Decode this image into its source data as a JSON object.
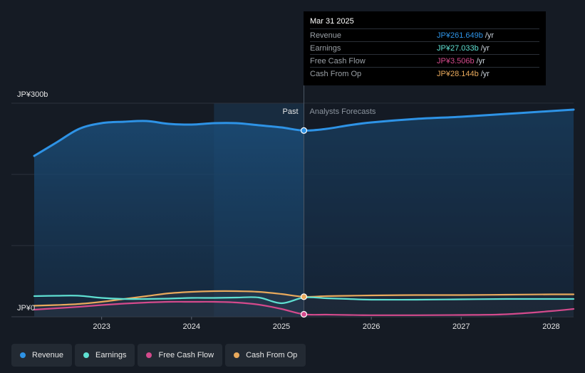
{
  "colors": {
    "background": "#151b24",
    "revenue": "#2e93e6",
    "earnings": "#5fe0d2",
    "free_cash_flow": "#d44a8c",
    "cash_from_op": "#e8a95c"
  },
  "tooltip": {
    "date": "Mar 31 2025",
    "rows": [
      {
        "label": "Revenue",
        "value": "JP¥261.649b",
        "unit": "/yr",
        "color": "#2e93e6"
      },
      {
        "label": "Earnings",
        "value": "JP¥27.033b",
        "unit": "/yr",
        "color": "#5fe0d2"
      },
      {
        "label": "Free Cash Flow",
        "value": "JP¥3.506b",
        "unit": "/yr",
        "color": "#d44a8c"
      },
      {
        "label": "Cash From Op",
        "value": "JP¥28.144b",
        "unit": "/yr",
        "color": "#e8a95c"
      }
    ]
  },
  "legend": [
    {
      "label": "Revenue",
      "color": "#2e93e6"
    },
    {
      "label": "Earnings",
      "color": "#5fe0d2"
    },
    {
      "label": "Free Cash Flow",
      "color": "#d44a8c"
    },
    {
      "label": "Cash From Op",
      "color": "#e8a95c"
    }
  ],
  "chart_data": {
    "type": "line",
    "y_top_label": "JP¥300b",
    "y_bottom_label": "JP¥0",
    "ylim": [
      0,
      300
    ],
    "xlim": [
      2022.25,
      2028.25
    ],
    "x_ticks": [
      "2023",
      "2024",
      "2025",
      "2026",
      "2027",
      "2028"
    ],
    "x_tick_values": [
      2023,
      2024,
      2025,
      2026,
      2027,
      2028
    ],
    "past_label": "Past",
    "forecast_label": "Analysts Forecasts",
    "divider_x": 2025.25,
    "highlight_start_x": 2024.25,
    "marker_x": 2025.25,
    "grid": true,
    "series": [
      {
        "name": "Revenue",
        "color": "#2e93e6",
        "points": [
          [
            2022.25,
            226
          ],
          [
            2022.5,
            245
          ],
          [
            2022.75,
            264
          ],
          [
            2023.0,
            272
          ],
          [
            2023.25,
            274
          ],
          [
            2023.5,
            275
          ],
          [
            2023.75,
            271
          ],
          [
            2024.0,
            270
          ],
          [
            2024.25,
            272
          ],
          [
            2024.5,
            272
          ],
          [
            2024.75,
            269
          ],
          [
            2025.0,
            266
          ],
          [
            2025.25,
            261.6
          ],
          [
            2025.5,
            264
          ],
          [
            2025.75,
            269
          ],
          [
            2026.0,
            273
          ],
          [
            2026.5,
            278
          ],
          [
            2027.0,
            281
          ],
          [
            2027.5,
            285
          ],
          [
            2028.0,
            289
          ],
          [
            2028.25,
            291
          ]
        ]
      },
      {
        "name": "Earnings",
        "color": "#5fe0d2",
        "points": [
          [
            2022.25,
            29
          ],
          [
            2022.5,
            29.5
          ],
          [
            2022.75,
            29.5
          ],
          [
            2023.0,
            26.5
          ],
          [
            2023.25,
            25
          ],
          [
            2023.5,
            25
          ],
          [
            2023.75,
            25.5
          ],
          [
            2024.0,
            26.5
          ],
          [
            2024.25,
            26.5
          ],
          [
            2024.5,
            27
          ],
          [
            2024.75,
            27
          ],
          [
            2025.0,
            19
          ],
          [
            2025.25,
            27
          ],
          [
            2025.5,
            26
          ],
          [
            2025.75,
            25
          ],
          [
            2026.0,
            24
          ],
          [
            2026.5,
            24
          ],
          [
            2027.0,
            24.5
          ],
          [
            2027.5,
            25
          ],
          [
            2028.0,
            25
          ],
          [
            2028.25,
            25
          ]
        ]
      },
      {
        "name": "Free Cash Flow",
        "color": "#d44a8c",
        "points": [
          [
            2022.25,
            10
          ],
          [
            2022.5,
            12
          ],
          [
            2022.75,
            14
          ],
          [
            2023.0,
            16.5
          ],
          [
            2023.25,
            18.5
          ],
          [
            2023.5,
            20
          ],
          [
            2023.75,
            21
          ],
          [
            2024.0,
            21
          ],
          [
            2024.25,
            21
          ],
          [
            2024.5,
            20
          ],
          [
            2024.75,
            17
          ],
          [
            2025.0,
            11
          ],
          [
            2025.25,
            3.5
          ],
          [
            2025.5,
            3
          ],
          [
            2025.75,
            2.5
          ],
          [
            2026.0,
            2.2
          ],
          [
            2026.5,
            2.2
          ],
          [
            2027.0,
            2.5
          ],
          [
            2027.5,
            3.5
          ],
          [
            2028.0,
            8
          ],
          [
            2028.25,
            11
          ]
        ]
      },
      {
        "name": "Cash From Op",
        "color": "#e8a95c",
        "points": [
          [
            2022.25,
            15.5
          ],
          [
            2022.5,
            16.5
          ],
          [
            2022.75,
            18
          ],
          [
            2023.0,
            21
          ],
          [
            2023.25,
            25
          ],
          [
            2023.5,
            29
          ],
          [
            2023.75,
            33
          ],
          [
            2024.0,
            35
          ],
          [
            2024.25,
            36
          ],
          [
            2024.5,
            36
          ],
          [
            2024.75,
            35
          ],
          [
            2025.0,
            32
          ],
          [
            2025.25,
            28.1
          ],
          [
            2025.5,
            29
          ],
          [
            2025.75,
            29.5
          ],
          [
            2026.0,
            30
          ],
          [
            2026.5,
            30.5
          ],
          [
            2027.0,
            30.5
          ],
          [
            2027.5,
            31
          ],
          [
            2028.0,
            31.5
          ],
          [
            2028.25,
            31.5
          ]
        ]
      }
    ]
  }
}
